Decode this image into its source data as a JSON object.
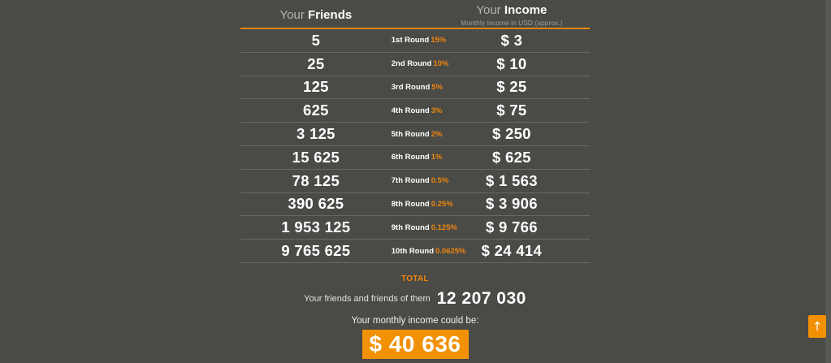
{
  "page": {
    "background": "#4a4a47",
    "accent": "#ef860d",
    "box_orange": "#f29103"
  },
  "table": {
    "header": {
      "friends_prefix": "Your",
      "friends_label": "Friends",
      "income_prefix": "Your",
      "income_label": "Income",
      "income_subtitle": "Monthly income in USD (approx.)"
    },
    "rows": [
      {
        "friends": "5",
        "round": "1st Round",
        "percent": "15%",
        "income": "$ 3"
      },
      {
        "friends": "25",
        "round": "2nd Round",
        "percent": "10%",
        "income": "$ 10"
      },
      {
        "friends": "125",
        "round": "3rd Round",
        "percent": "5%",
        "income": "$ 25"
      },
      {
        "friends": "625",
        "round": "4th Round",
        "percent": "3%",
        "income": "$ 75"
      },
      {
        "friends": "3 125",
        "round": "5th Round",
        "percent": "2%",
        "income": "$ 250"
      },
      {
        "friends": "15 625",
        "round": "6th Round",
        "percent": "1%",
        "income": "$ 625"
      },
      {
        "friends": "78 125",
        "round": "7th Round",
        "percent": "0.5%",
        "income": "$ 1 563"
      },
      {
        "friends": "390 625",
        "round": "8th Round",
        "percent": "0.25%",
        "income": "$ 3 906"
      },
      {
        "friends": "1 953 125",
        "round": "9th Round",
        "percent": "0.125%",
        "income": "$ 9 766"
      },
      {
        "friends": "9 765 625",
        "round": "10th Round",
        "percent": "0.0625%",
        "income": "$ 24 414"
      }
    ]
  },
  "summary": {
    "total_label": "TOTAL",
    "friends_total_label": "Your friends and friends of them",
    "friends_total_value": "12 207 030",
    "income_label": "Your monthly income could be:",
    "income_value": "$ 40 636"
  },
  "scroll_top": {
    "icon": "↑"
  }
}
